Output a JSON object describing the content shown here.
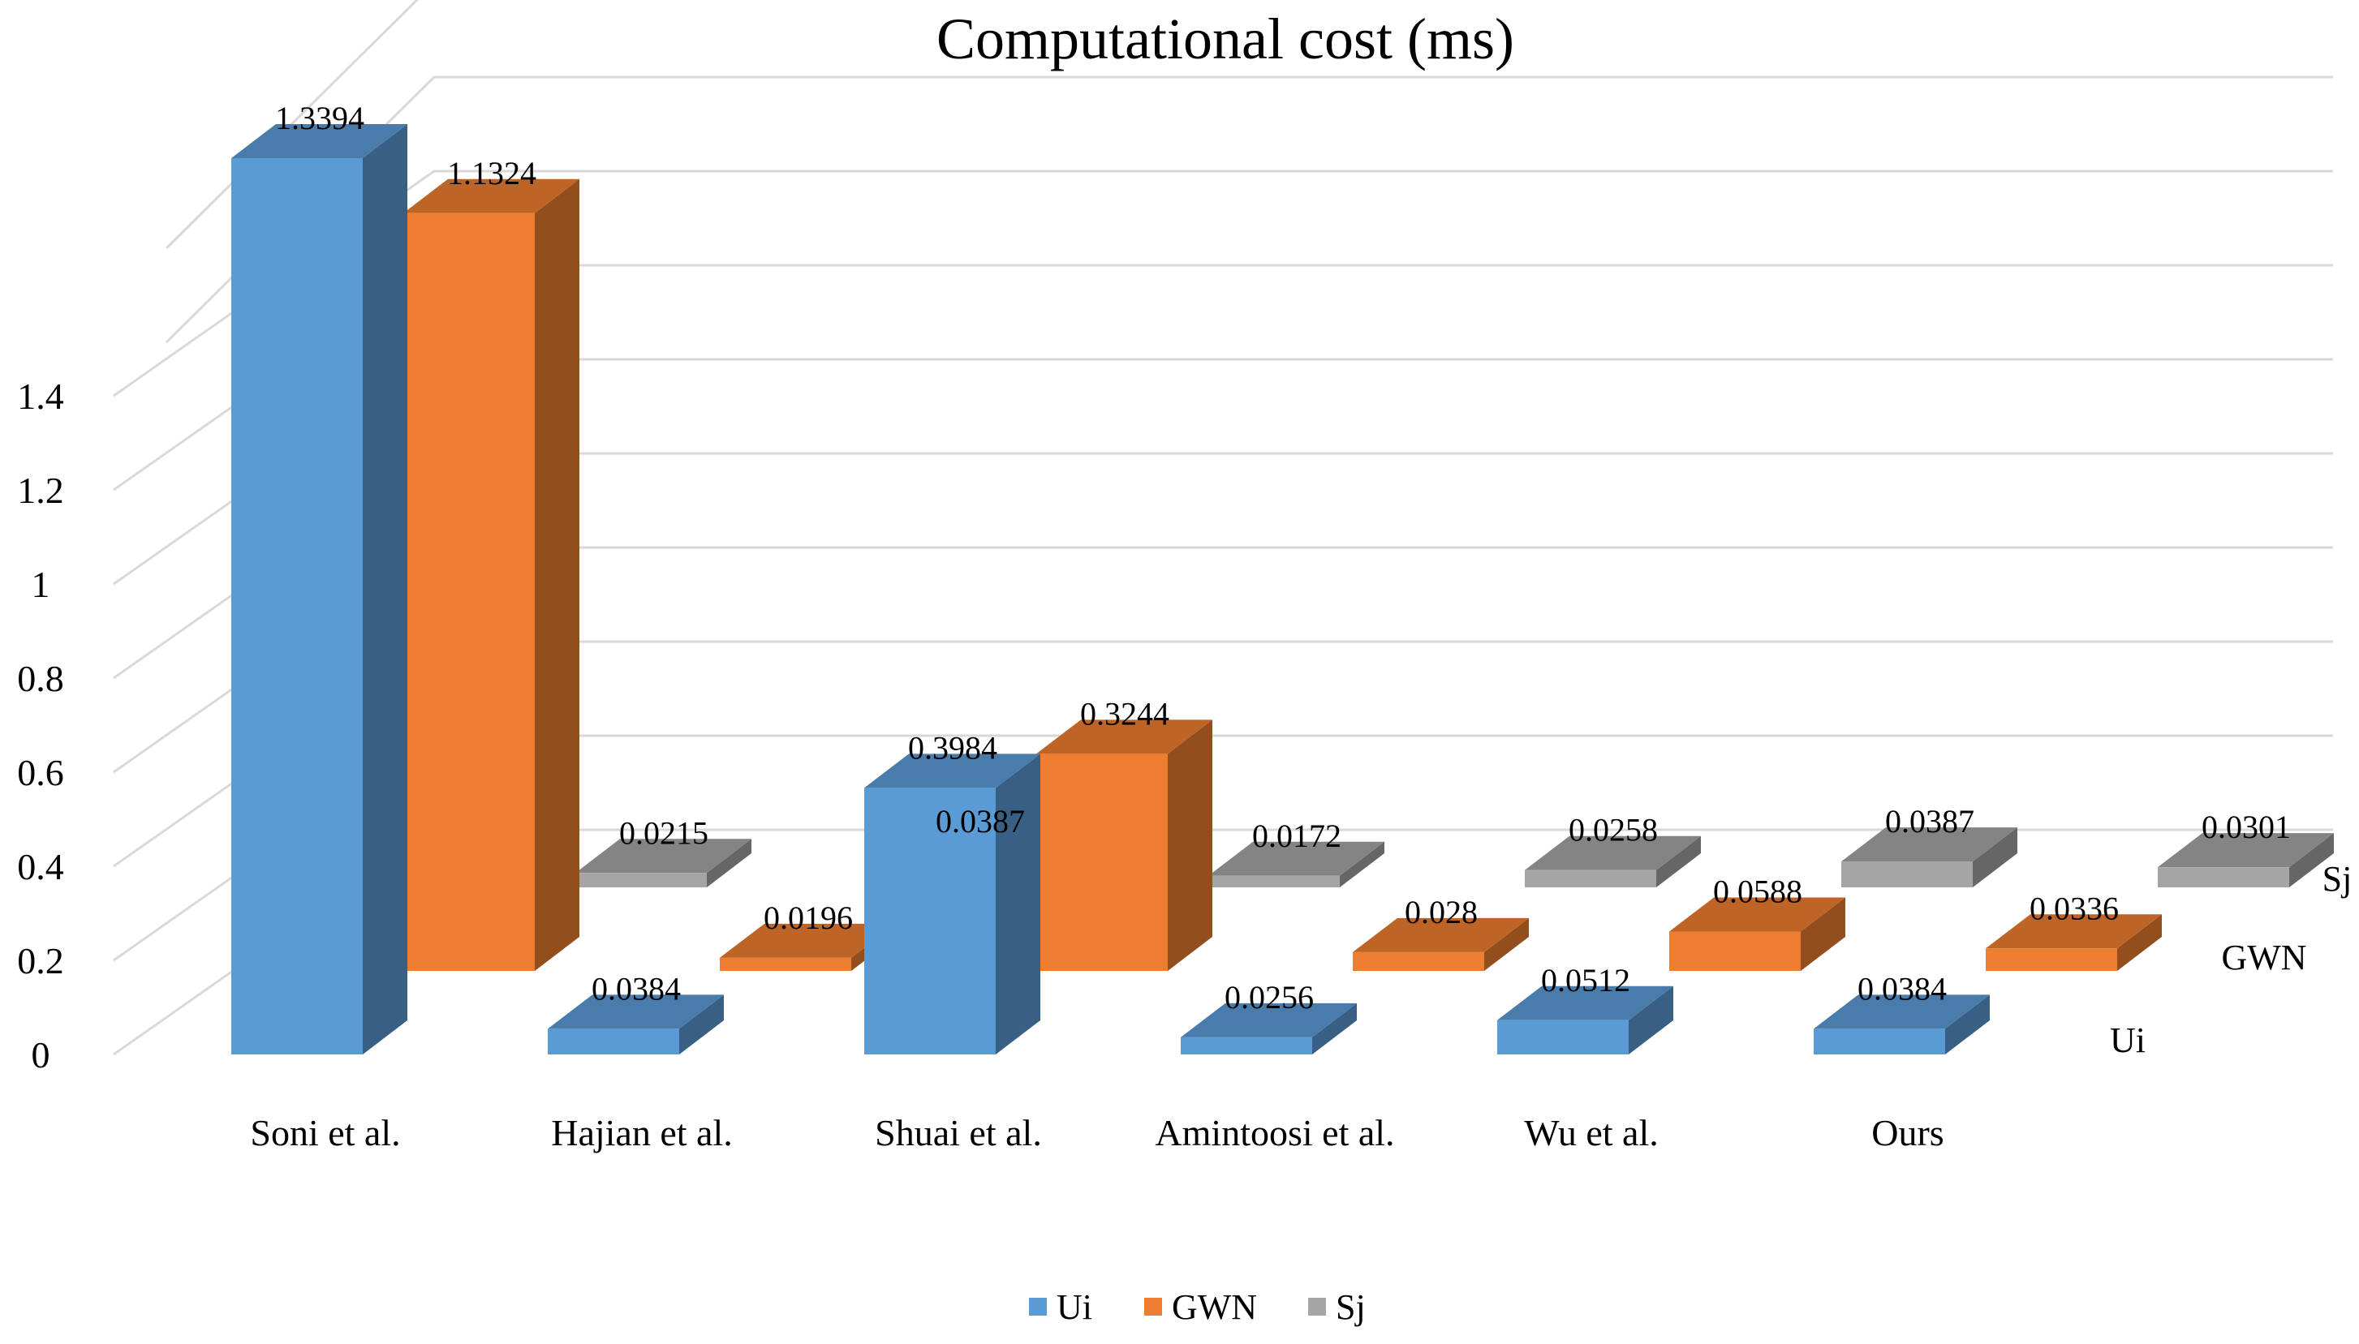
{
  "chart_data": {
    "type": "bar",
    "variant": "3d-column",
    "title": "Computational cost (ms)",
    "xlabel": "",
    "ylabel": "",
    "ylim": [
      0,
      1.4
    ],
    "yticks": [
      "0",
      "0.2",
      "0.4",
      "0.6",
      "0.8",
      "1",
      "1.2",
      "1.4"
    ],
    "grid": true,
    "legend_position": "bottom",
    "categories": [
      "Soni et al.",
      "Hajian et al.",
      "Shuai et al.",
      "Amintoosi et al.",
      "Wu et al.",
      "Ours"
    ],
    "series": [
      {
        "name": "Ui",
        "color": "#5B9BD5",
        "values": [
          1.3394,
          0.0384,
          0.3984,
          0.0256,
          0.0512,
          0.0384
        ],
        "labels": [
          "1.3394",
          "0.0384",
          "0.3984",
          "0.0256",
          "0.0512",
          "0.0384"
        ]
      },
      {
        "name": "GWN",
        "color": "#ED7D31",
        "values": [
          1.1324,
          0.0196,
          0.3244,
          0.028,
          0.0588,
          0.0336
        ],
        "labels": [
          "1.1324",
          "0.0196",
          "0.3244",
          "0.028",
          "0.0588",
          "0.0336"
        ]
      },
      {
        "name": "Sj",
        "color": "#A5A5A5",
        "values": [
          0.0215,
          0.0387,
          0.0172,
          0.0258,
          0.0387,
          0.0301
        ],
        "labels": [
          "0.0215",
          "0.0387",
          "0.0172",
          "0.0258",
          "0.0387",
          "0.0301"
        ]
      }
    ]
  }
}
